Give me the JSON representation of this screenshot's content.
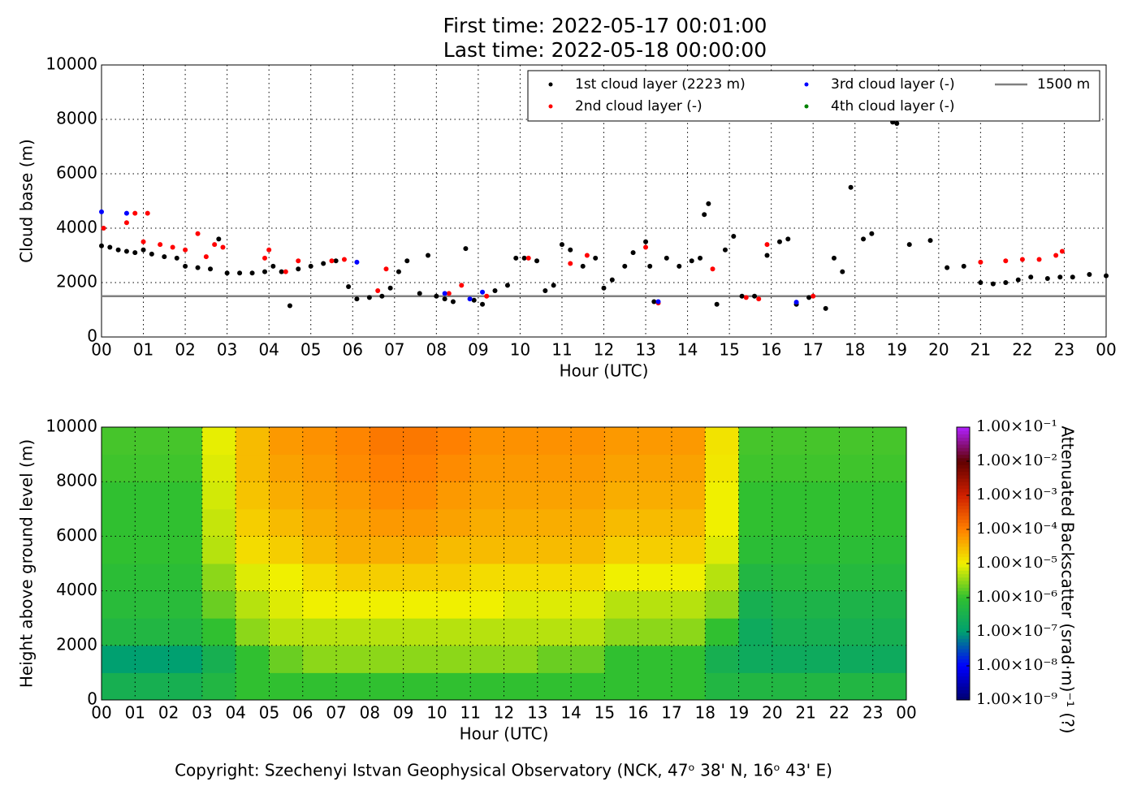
{
  "title_lines": [
    "First time: 2022-05-17 00:01:00",
    "Last time: 2022-05-18 00:00:00"
  ],
  "footer": "Copyright: Szechenyi Istvan Geophysical Observatory (NCK, 47ᵒ 38' N, 16ᵒ 43' E)",
  "chart_data": [
    {
      "type": "scatter",
      "xlabel": "Hour (UTC)",
      "ylabel": "Cloud base (m)",
      "xlim": [
        0,
        24
      ],
      "ylim": [
        0,
        10000
      ],
      "xticks": [
        {
          "value": 0,
          "label": "00"
        },
        {
          "value": 1,
          "label": "01"
        },
        {
          "value": 2,
          "label": "02"
        },
        {
          "value": 3,
          "label": "03"
        },
        {
          "value": 4,
          "label": "04"
        },
        {
          "value": 5,
          "label": "05"
        },
        {
          "value": 6,
          "label": "06"
        },
        {
          "value": 7,
          "label": "07"
        },
        {
          "value": 8,
          "label": "08"
        },
        {
          "value": 9,
          "label": "09"
        },
        {
          "value": 10,
          "label": "10"
        },
        {
          "value": 11,
          "label": "11"
        },
        {
          "value": 12,
          "label": "12"
        },
        {
          "value": 13,
          "label": "13"
        },
        {
          "value": 14,
          "label": "14"
        },
        {
          "value": 15,
          "label": "15"
        },
        {
          "value": 16,
          "label": "16"
        },
        {
          "value": 17,
          "label": "17"
        },
        {
          "value": 18,
          "label": "18"
        },
        {
          "value": 19,
          "label": "19"
        },
        {
          "value": 20,
          "label": "20"
        },
        {
          "value": 21,
          "label": "21"
        },
        {
          "value": 22,
          "label": "22"
        },
        {
          "value": 23,
          "label": "23"
        },
        {
          "value": 24,
          "label": "00"
        }
      ],
      "yticks": [
        0,
        2000,
        4000,
        6000,
        8000,
        10000
      ],
      "grid": true,
      "legend": "upper right",
      "series": [
        {
          "name": "1st cloud layer (2223 m)",
          "color": "#000000",
          "x": [
            0.0,
            0.2,
            0.4,
            0.6,
            0.8,
            1.0,
            1.2,
            1.5,
            1.8,
            2.0,
            2.3,
            2.6,
            2.8,
            3.0,
            3.3,
            3.6,
            3.9,
            4.1,
            4.3,
            4.5,
            4.7,
            5.0,
            5.3,
            5.6,
            5.9,
            6.1,
            6.4,
            6.7,
            6.9,
            7.1,
            7.3,
            7.6,
            7.8,
            8.0,
            8.2,
            8.4,
            8.7,
            8.9,
            9.1,
            9.4,
            9.7,
            9.9,
            10.1,
            10.4,
            10.6,
            10.8,
            11.0,
            11.2,
            11.5,
            11.8,
            12.0,
            12.2,
            12.5,
            12.7,
            13.0,
            13.1,
            13.2,
            13.5,
            13.8,
            14.1,
            14.3,
            14.4,
            14.5,
            14.7,
            14.9,
            15.1,
            15.3,
            15.6,
            15.9,
            16.2,
            16.4,
            16.6,
            16.9,
            17.3,
            17.5,
            17.7,
            17.9,
            18.2,
            18.4,
            18.9,
            19.0,
            19.3,
            19.8,
            20.2,
            20.6,
            21.0,
            21.3,
            21.6,
            21.9,
            22.2,
            22.6,
            22.9,
            23.2,
            23.6,
            24.0
          ],
          "values": [
            3350,
            3300,
            3200,
            3150,
            3100,
            3200,
            3050,
            2950,
            2900,
            2600,
            2550,
            2500,
            3600,
            2350,
            2350,
            2350,
            2400,
            2600,
            2400,
            1150,
            2500,
            2600,
            2700,
            2800,
            1850,
            1400,
            1450,
            1500,
            1800,
            2400,
            2800,
            1600,
            3000,
            1500,
            1400,
            1300,
            3250,
            1350,
            1200,
            1700,
            1900,
            2900,
            2900,
            2800,
            1700,
            1900,
            3400,
            3200,
            2600,
            2900,
            1800,
            2100,
            2600,
            3100,
            3500,
            2600,
            1300,
            2900,
            2600,
            2800,
            2900,
            4500,
            4900,
            1200,
            3200,
            3700,
            1500,
            1500,
            3000,
            3500,
            3600,
            1200,
            1450,
            1050,
            2900,
            2400,
            5500,
            3600,
            3800,
            7900,
            7850,
            3400,
            3550,
            2550,
            2600,
            2000,
            1950,
            2000,
            2100,
            2200,
            2150,
            2200,
            2200,
            2300,
            2250
          ]
        },
        {
          "name": "2nd cloud layer (-)",
          "color": "#ff0000",
          "x": [
            0.05,
            0.6,
            0.8,
            1.1,
            1.0,
            1.4,
            1.7,
            2.0,
            2.3,
            2.5,
            2.7,
            2.9,
            3.9,
            4.0,
            4.4,
            4.7,
            5.5,
            5.8,
            6.6,
            6.8,
            8.3,
            8.6,
            9.2,
            10.2,
            11.2,
            11.6,
            13.0,
            13.3,
            14.6,
            15.4,
            15.7,
            15.9,
            17.0,
            21.0,
            21.6,
            22.0,
            22.4,
            22.8,
            22.95
          ],
          "values": [
            4000,
            4200,
            4550,
            4550,
            3500,
            3400,
            3300,
            3200,
            3800,
            2950,
            3400,
            3300,
            2900,
            3200,
            2400,
            2800,
            2800,
            2850,
            1700,
            2500,
            1600,
            1900,
            1500,
            2900,
            2700,
            3000,
            3300,
            1250,
            2500,
            1450,
            1400,
            3400,
            1500,
            2750,
            2800,
            2850,
            2850,
            3000,
            3150
          ]
        },
        {
          "name": "3rd cloud layer (-)",
          "color": "#0000ff",
          "x": [
            0.0,
            0.6,
            6.1,
            8.2,
            8.8,
            9.1,
            13.3,
            16.6
          ],
          "values": [
            4600,
            4550,
            2750,
            1600,
            1400,
            1650,
            1300,
            1280
          ]
        },
        {
          "name": "4th cloud layer (-)",
          "color": "#008000",
          "x": [],
          "values": []
        }
      ],
      "hlines": [
        {
          "name": "1500 m",
          "value": 1500,
          "color": "#808080"
        }
      ]
    },
    {
      "type": "heatmap",
      "xlabel": "Hour (UTC)",
      "ylabel": "Height above ground level (m)",
      "xlim": [
        0,
        24
      ],
      "ylim": [
        0,
        10000
      ],
      "xticks": [
        {
          "value": 0,
          "label": "00"
        },
        {
          "value": 1,
          "label": "01"
        },
        {
          "value": 2,
          "label": "02"
        },
        {
          "value": 3,
          "label": "03"
        },
        {
          "value": 4,
          "label": "04"
        },
        {
          "value": 5,
          "label": "05"
        },
        {
          "value": 6,
          "label": "06"
        },
        {
          "value": 7,
          "label": "07"
        },
        {
          "value": 8,
          "label": "08"
        },
        {
          "value": 9,
          "label": "09"
        },
        {
          "value": 10,
          "label": "10"
        },
        {
          "value": 11,
          "label": "11"
        },
        {
          "value": 12,
          "label": "12"
        },
        {
          "value": 13,
          "label": "13"
        },
        {
          "value": 14,
          "label": "14"
        },
        {
          "value": 15,
          "label": "15"
        },
        {
          "value": 16,
          "label": "16"
        },
        {
          "value": 17,
          "label": "17"
        },
        {
          "value": 18,
          "label": "18"
        },
        {
          "value": 19,
          "label": "19"
        },
        {
          "value": 20,
          "label": "20"
        },
        {
          "value": 21,
          "label": "21"
        },
        {
          "value": 22,
          "label": "22"
        },
        {
          "value": 23,
          "label": "23"
        },
        {
          "value": 24,
          "label": "00"
        }
      ],
      "yticks": [
        0,
        2000,
        4000,
        6000,
        8000,
        10000
      ],
      "grid": true,
      "xbins": [
        0,
        1,
        2,
        3,
        4,
        5,
        6,
        7,
        8,
        9,
        10,
        11,
        12,
        13,
        14,
        15,
        16,
        17,
        18,
        19,
        20,
        21,
        22,
        23,
        24
      ],
      "ybins": [
        0,
        1000,
        2000,
        3000,
        4000,
        5000,
        6000,
        7000,
        8000,
        9000,
        10000
      ],
      "z": [
        [
          3e-07,
          3e-07,
          3e-07,
          5e-07,
          1e-06,
          1e-06,
          1e-06,
          1e-06,
          1e-06,
          1e-06,
          1e-06,
          1e-06,
          1e-06,
          1e-06,
          1e-06,
          1e-06,
          1e-06,
          1e-06,
          5e-07,
          5e-07,
          5e-07,
          5e-07,
          5e-07,
          5e-07
        ],
        [
          1e-07,
          1e-07,
          1e-07,
          3e-07,
          1e-06,
          2e-06,
          3e-06,
          3e-06,
          3e-06,
          3e-06,
          3e-06,
          3e-06,
          3e-06,
          2e-06,
          2e-06,
          1e-06,
          1e-06,
          1e-06,
          3e-07,
          2e-07,
          2e-07,
          2e-07,
          2e-07,
          2e-07
        ],
        [
          5e-07,
          5e-07,
          5e-07,
          1e-06,
          3e-06,
          5e-06,
          5e-06,
          5e-06,
          5e-06,
          5e-06,
          5e-06,
          5e-06,
          5e-06,
          5e-06,
          5e-06,
          3e-06,
          3e-06,
          3e-06,
          1e-06,
          2e-07,
          3e-07,
          3e-07,
          3e-07,
          3e-07
        ],
        [
          7e-07,
          7e-07,
          7e-07,
          2e-06,
          5e-06,
          8e-06,
          1e-05,
          1e-05,
          1e-05,
          1e-05,
          1e-05,
          1e-05,
          8e-06,
          8e-06,
          8e-06,
          5e-06,
          5e-06,
          5e-06,
          3e-06,
          3e-07,
          4e-07,
          4e-07,
          4e-07,
          4e-07
        ],
        [
          8e-07,
          8e-07,
          8e-07,
          3e-06,
          8e-06,
          1e-05,
          1.5e-05,
          2e-05,
          2e-05,
          2e-05,
          2e-05,
          1.5e-05,
          1.5e-05,
          1.5e-05,
          1.5e-05,
          1e-05,
          1e-05,
          1e-05,
          5e-06,
          5e-07,
          6e-07,
          6e-07,
          6e-07,
          6e-07
        ],
        [
          1e-06,
          1e-06,
          1e-06,
          5e-06,
          1.5e-05,
          2e-05,
          3e-05,
          4e-05,
          4e-05,
          4e-05,
          3e-05,
          3e-05,
          3e-05,
          3e-05,
          3e-05,
          2e-05,
          2e-05,
          2e-05,
          8e-06,
          8e-07,
          8e-07,
          8e-07,
          8e-07,
          8e-07
        ],
        [
          1e-06,
          1e-06,
          1e-06,
          6e-06,
          2e-05,
          3e-05,
          4e-05,
          5e-05,
          6e-05,
          6e-05,
          5e-05,
          4e-05,
          4e-05,
          4e-05,
          4e-05,
          3e-05,
          3e-05,
          3e-05,
          1e-05,
          1e-06,
          1e-06,
          1e-06,
          1e-06,
          1e-06
        ],
        [
          1e-06,
          1e-06,
          1e-06,
          7e-06,
          2.5e-05,
          4e-05,
          5e-05,
          6e-05,
          8e-05,
          8e-05,
          6e-05,
          5e-05,
          5e-05,
          5e-05,
          5e-05,
          4e-05,
          4e-05,
          4e-05,
          1e-05,
          1e-06,
          1e-06,
          1e-06,
          1e-06,
          1e-06
        ],
        [
          1.2e-06,
          1.2e-06,
          1.2e-06,
          8e-06,
          3e-05,
          5e-05,
          6e-05,
          8e-05,
          0.0001,
          0.0001,
          8e-05,
          6e-05,
          6e-05,
          6e-05,
          6e-05,
          5e-05,
          5e-05,
          5e-05,
          1.2e-05,
          1.2e-06,
          1.2e-06,
          1.2e-06,
          1.2e-06,
          1.2e-06
        ],
        [
          1.3e-06,
          1.3e-06,
          1.3e-06,
          9e-06,
          3e-05,
          6e-05,
          7e-05,
          9e-05,
          0.00012,
          0.00012,
          0.0001,
          7e-05,
          7e-05,
          7e-05,
          7e-05,
          6e-05,
          6e-05,
          6e-05,
          1.3e-05,
          1.3e-06,
          1.3e-06,
          1.3e-06,
          1.3e-06,
          1.3e-06
        ]
      ],
      "colorbar": {
        "label": "Attenuated Backscatter (srad·m)⁻¹ (?)",
        "log": true,
        "clim": [
          1e-09,
          0.1
        ],
        "colors": [
          "#00006e",
          "#0000ff",
          "#00a070",
          "#30c030",
          "#f0f000",
          "#ff8000",
          "#d02000",
          "#600000",
          "#b020ff"
        ],
        "ticks": [
          {
            "value": 1e-09,
            "label": "1.00×10⁻⁹"
          },
          {
            "value": 1e-08,
            "label": "1.00×10⁻⁸"
          },
          {
            "value": 1e-07,
            "label": "1.00×10⁻⁷"
          },
          {
            "value": 1e-06,
            "label": "1.00×10⁻⁶"
          },
          {
            "value": 1e-05,
            "label": "1.00×10⁻⁵"
          },
          {
            "value": 0.0001,
            "label": "1.00×10⁻⁴"
          },
          {
            "value": 0.001,
            "label": "1.00×10⁻³"
          },
          {
            "value": 0.01,
            "label": "1.00×10⁻²"
          },
          {
            "value": 0.1,
            "label": "1.00×10⁻¹"
          }
        ]
      }
    }
  ]
}
